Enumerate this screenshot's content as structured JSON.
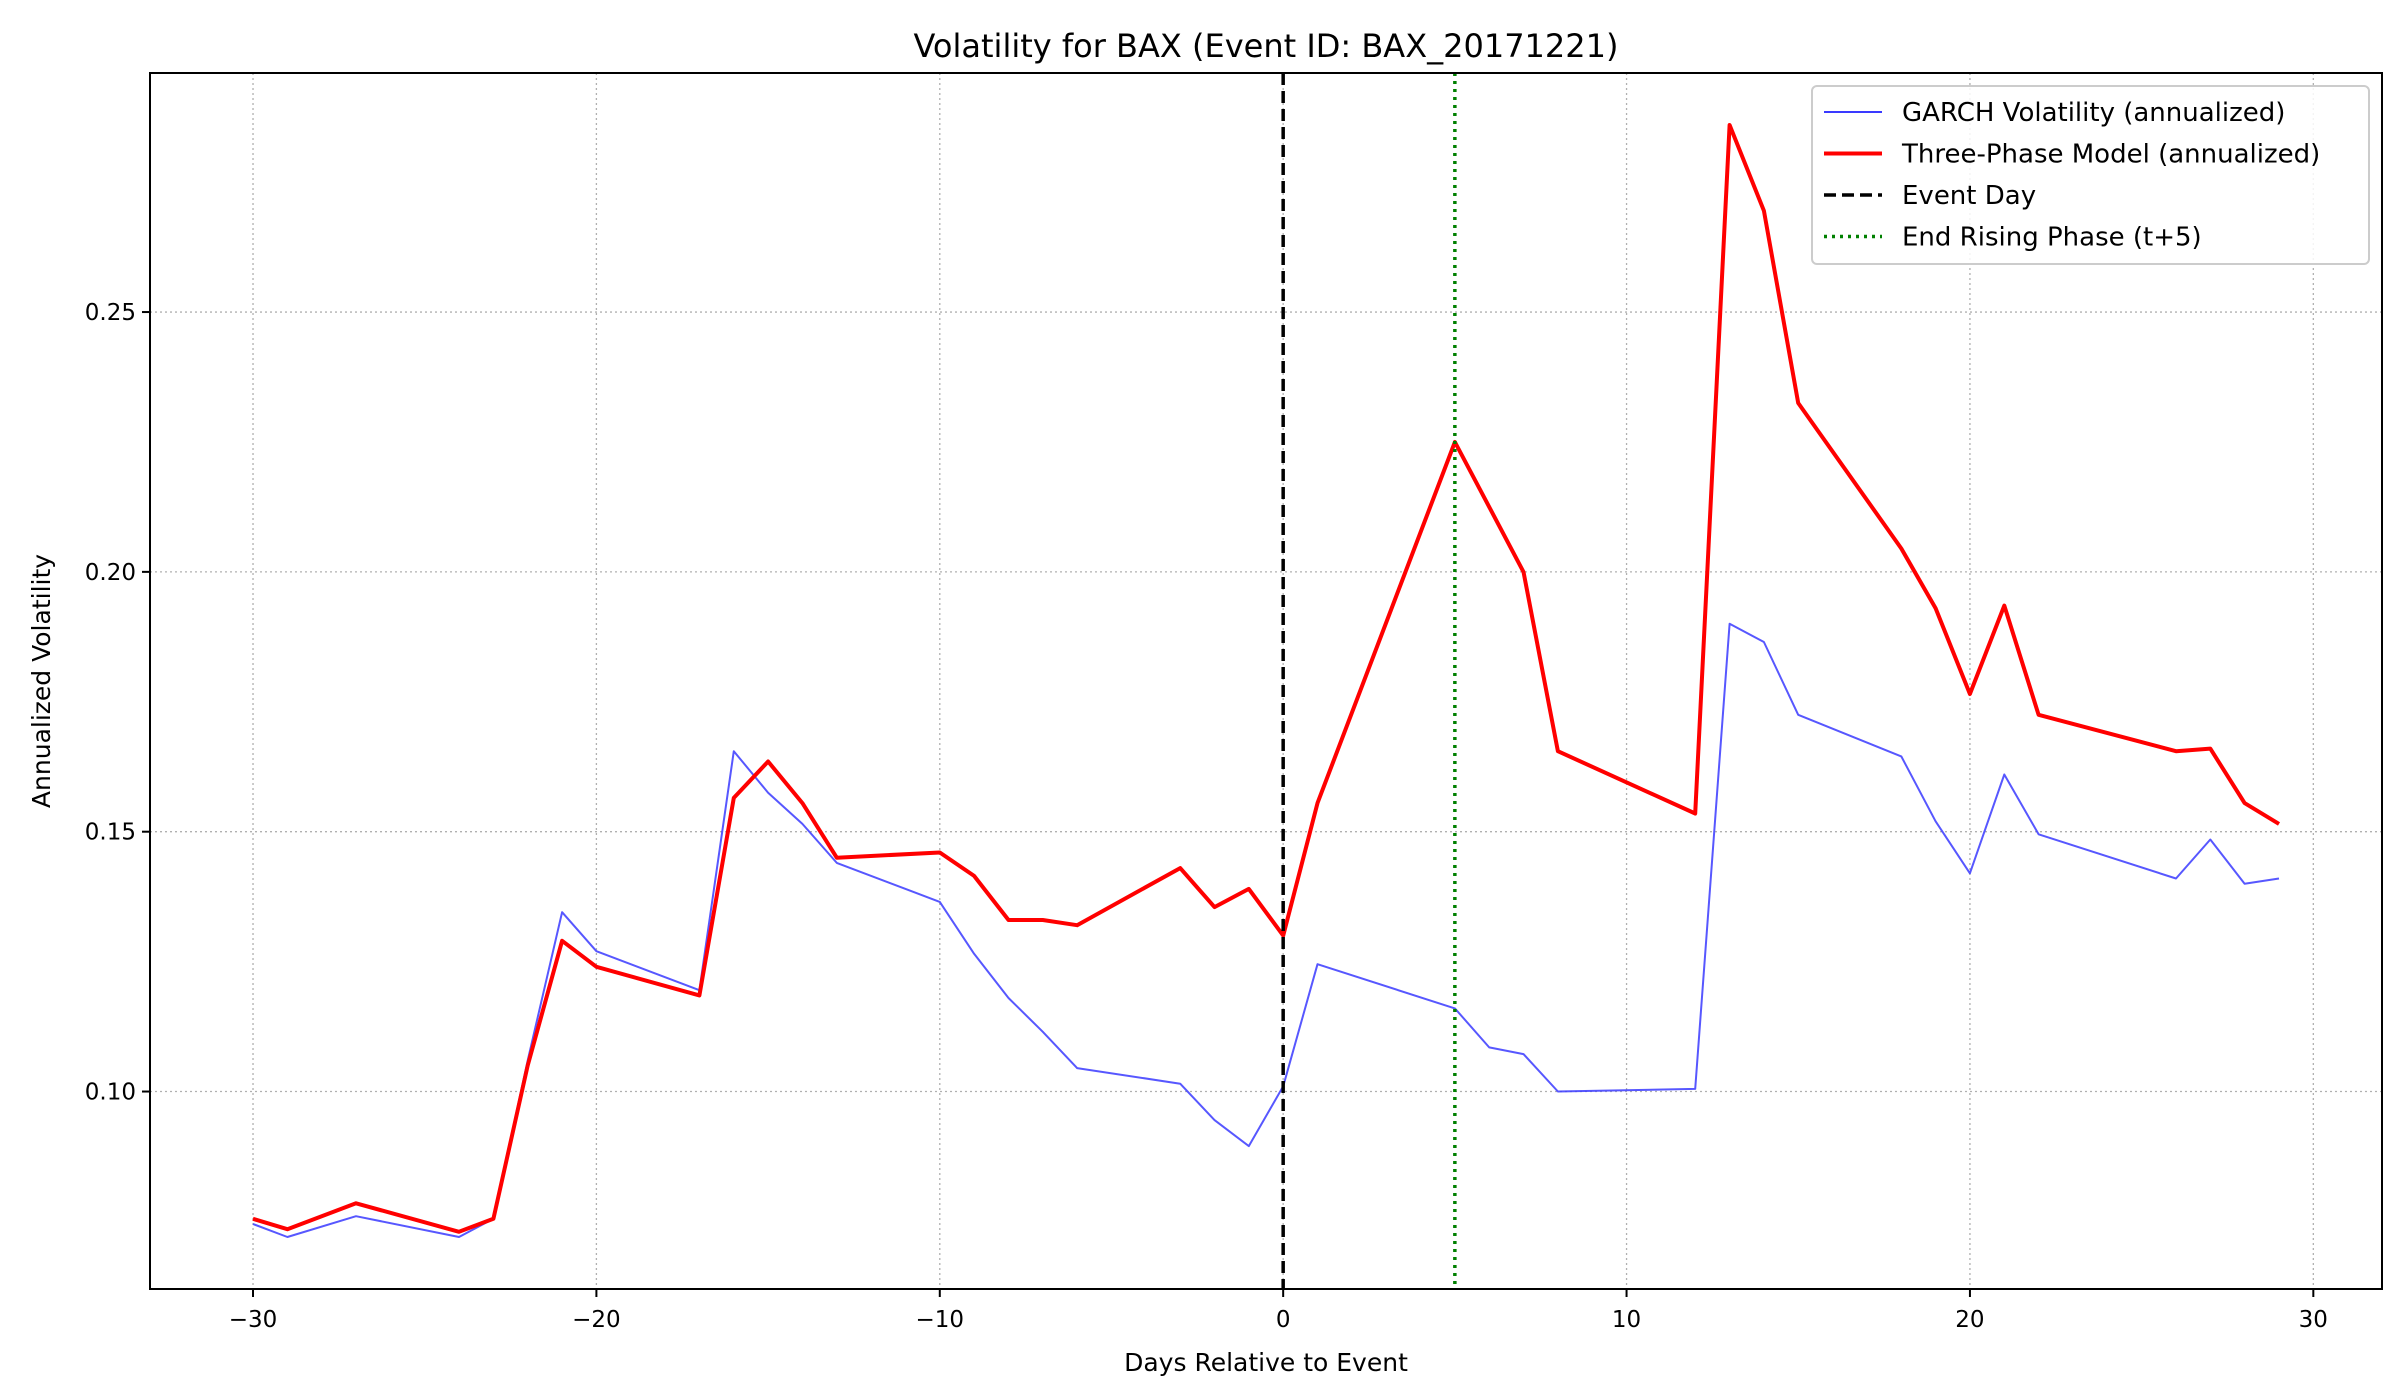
{
  "chart_data": {
    "type": "line",
    "title": "Volatility for BAX (Event ID: BAX_20171221)",
    "xlabel": "Days Relative to Event",
    "ylabel": "Annualized Volatility",
    "xlim": [
      -33,
      32
    ],
    "ylim": [
      0.062,
      0.296
    ],
    "xticks": [
      -30,
      -20,
      -10,
      0,
      10,
      20,
      30
    ],
    "xtick_labels": [
      "−30",
      "−20",
      "−10",
      "0",
      "10",
      "20",
      "30"
    ],
    "yticks": [
      0.1,
      0.15,
      0.2,
      0.25
    ],
    "ytick_labels": [
      "0.10",
      "0.15",
      "0.20",
      "0.25"
    ],
    "grid": true,
    "legend_position": "top-right",
    "series": [
      {
        "name": "GARCH Volatility (annualized)",
        "color": "#3a3aff",
        "style": "solid",
        "points": [
          [
            -30,
            0.0745
          ],
          [
            -29,
            0.072
          ],
          [
            -27,
            0.076
          ],
          [
            -24,
            0.072
          ],
          [
            -23,
            0.0755
          ],
          [
            -22,
            0.106
          ],
          [
            -21,
            0.1345
          ],
          [
            -20,
            0.127
          ],
          [
            -17,
            0.1195
          ],
          [
            -16,
            0.1655
          ],
          [
            -15,
            0.1575
          ],
          [
            -14,
            0.1515
          ],
          [
            -13,
            0.144
          ],
          [
            -10,
            0.1365
          ],
          [
            -9,
            0.1265
          ],
          [
            -8,
            0.118
          ],
          [
            -7,
            0.1115
          ],
          [
            -6,
            0.1045
          ],
          [
            -3,
            0.1015
          ],
          [
            -2,
            0.0945
          ],
          [
            -1,
            0.0895
          ],
          [
            0,
            0.101
          ],
          [
            1,
            0.1245
          ],
          [
            5,
            0.116
          ],
          [
            6,
            0.1085
          ],
          [
            7,
            0.1072
          ],
          [
            8,
            0.1
          ],
          [
            12,
            0.1005
          ],
          [
            13,
            0.19
          ],
          [
            14,
            0.1865
          ],
          [
            15,
            0.1725
          ],
          [
            18,
            0.1645
          ],
          [
            19,
            0.152
          ],
          [
            20,
            0.142
          ],
          [
            21,
            0.161
          ],
          [
            22,
            0.1495
          ],
          [
            26,
            0.141
          ],
          [
            27,
            0.1485
          ],
          [
            28,
            0.14
          ],
          [
            29,
            0.141
          ]
        ]
      },
      {
        "name": "Three-Phase Model (annualized)",
        "color": "#ff0000",
        "style": "solid-thick",
        "points": [
          [
            -30,
            0.0755
          ],
          [
            -29,
            0.0735
          ],
          [
            -27,
            0.0785
          ],
          [
            -24,
            0.073
          ],
          [
            -23,
            0.0755
          ],
          [
            -22,
            0.105
          ],
          [
            -21,
            0.129
          ],
          [
            -20,
            0.124
          ],
          [
            -17,
            0.1185
          ],
          [
            -16,
            0.1565
          ],
          [
            -15,
            0.1635
          ],
          [
            -14,
            0.1555
          ],
          [
            -13,
            0.145
          ],
          [
            -10,
            0.146
          ],
          [
            -9,
            0.1415
          ],
          [
            -8,
            0.133
          ],
          [
            -7,
            0.133
          ],
          [
            -6,
            0.132
          ],
          [
            -3,
            0.143
          ],
          [
            -2,
            0.1355
          ],
          [
            -1,
            0.139
          ],
          [
            0,
            0.13
          ],
          [
            1,
            0.1555
          ],
          [
            5,
            0.225
          ],
          [
            7,
            0.2
          ],
          [
            8,
            0.1655
          ],
          [
            12,
            0.1535
          ],
          [
            13,
            0.286
          ],
          [
            14,
            0.2695
          ],
          [
            15,
            0.2325
          ],
          [
            18,
            0.2045
          ],
          [
            19,
            0.193
          ],
          [
            20,
            0.1765
          ],
          [
            21,
            0.1935
          ],
          [
            22,
            0.1725
          ],
          [
            26,
            0.1655
          ],
          [
            27,
            0.166
          ],
          [
            28,
            0.1555
          ],
          [
            29,
            0.1515
          ]
        ]
      }
    ],
    "vlines": [
      {
        "name": "Event Day",
        "x": 0,
        "color": "#000000",
        "style": "dashed"
      },
      {
        "name": "End Rising Phase (t+5)",
        "x": 5,
        "color": "#008000",
        "style": "dotted"
      }
    ]
  }
}
